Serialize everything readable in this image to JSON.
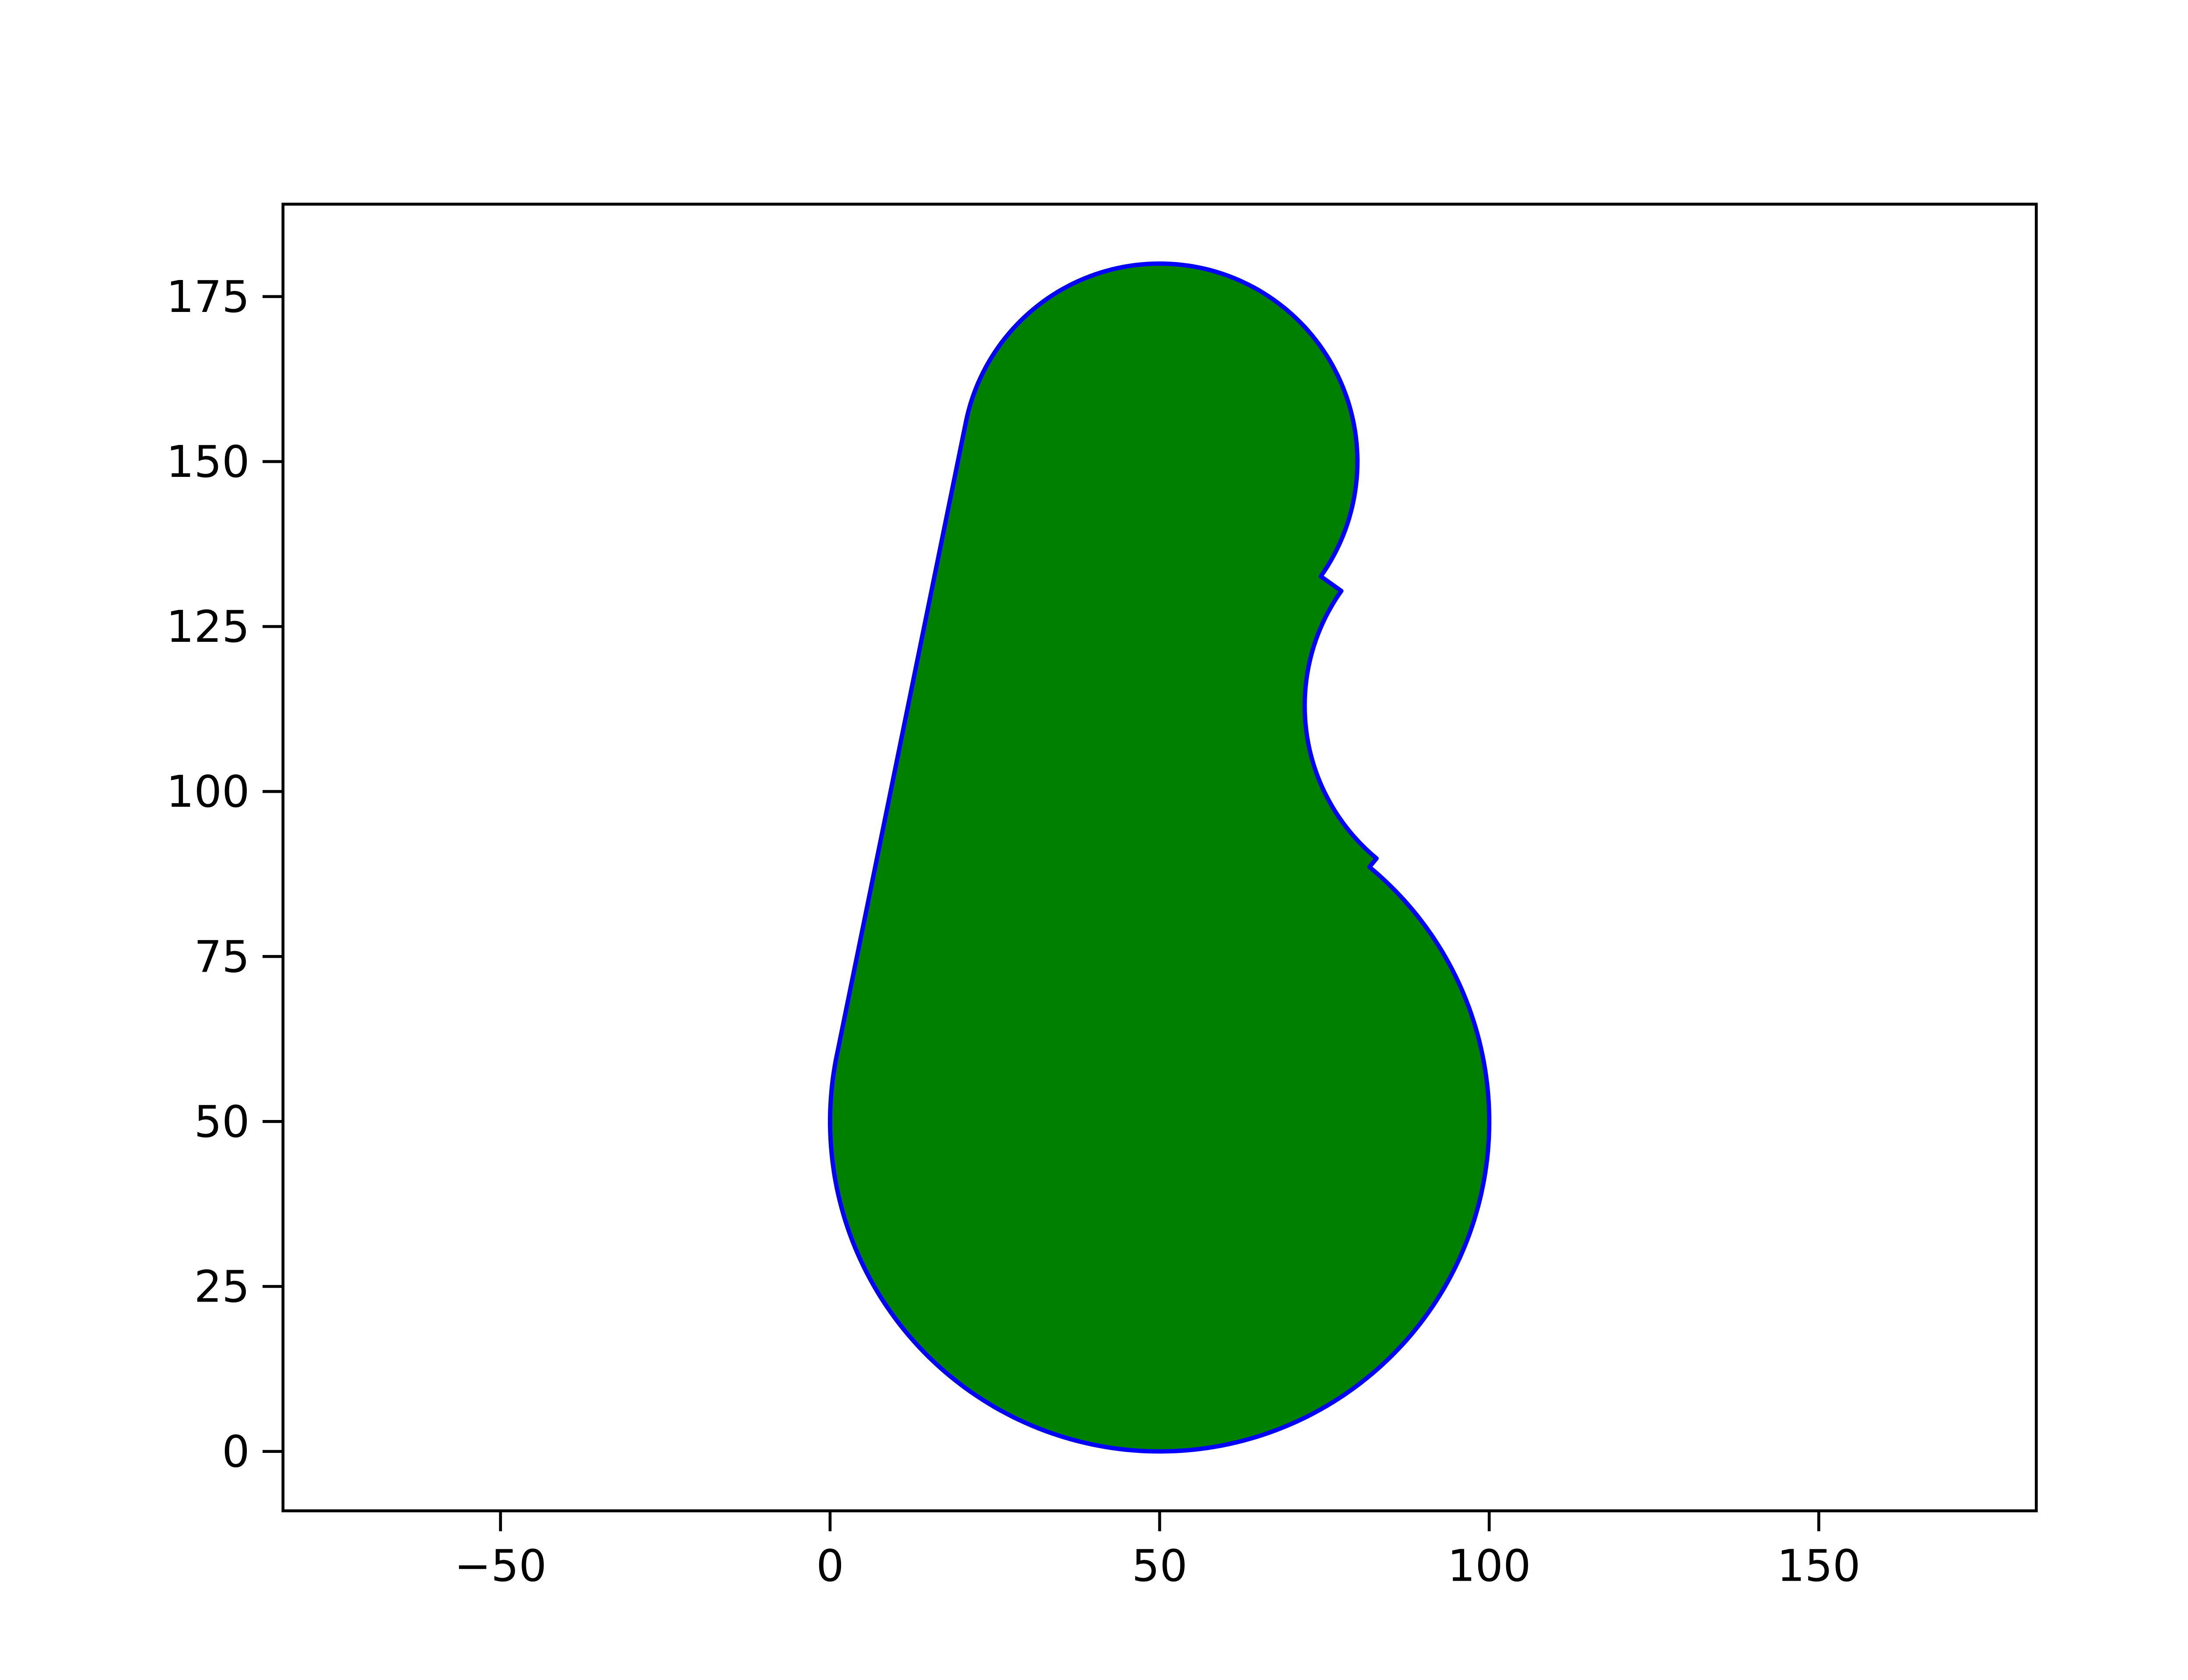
{
  "chart_data": {
    "type": "area",
    "title": "",
    "xlabel": "",
    "ylabel": "",
    "xlim": [
      -83,
      183
    ],
    "ylim": [
      -9,
      189
    ],
    "grid": false,
    "legend": "none",
    "x_ticks": [
      -50,
      0,
      50,
      100,
      150
    ],
    "x_tick_labels": [
      "−50",
      "0",
      "50",
      "100",
      "150"
    ],
    "y_ticks": [
      0,
      25,
      50,
      75,
      100,
      125,
      150,
      175
    ],
    "y_tick_labels": [
      "0",
      "25",
      "50",
      "75",
      "100",
      "125",
      "150",
      "175"
    ],
    "shape": {
      "fill_color": "#008000",
      "edge_color": "#0000ff",
      "big_circle": {
        "center": [
          50,
          50
        ],
        "radius": 50
      },
      "small_circle": {
        "center": [
          50,
          150
        ],
        "radius": 30
      },
      "concave_arc": {
        "center": [
          102,
          113
        ],
        "radius": 30
      },
      "tangent_line": {
        "from": [
          1.0,
          59.9
        ],
        "to": [
          20.6,
          155.9
        ]
      }
    }
  }
}
